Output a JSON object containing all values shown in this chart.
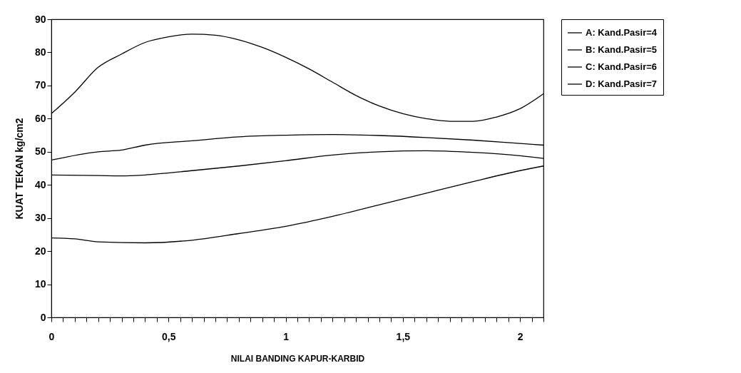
{
  "chart_data": {
    "type": "line",
    "xlabel": "NILAI BANDING KAPUR-KARBID",
    "ylabel": "KUAT TEKAN kg/cm2",
    "xlim": [
      0,
      2.1
    ],
    "ylim": [
      0,
      90
    ],
    "xticks": [
      0,
      {
        "value": 0.05,
        "label": null
      },
      {
        "value": 0.1,
        "label": null
      },
      {
        "value": 0.15,
        "label": null
      },
      {
        "value": 0.2,
        "label": null
      },
      {
        "value": 0.25,
        "label": null
      },
      {
        "value": 0.3,
        "label": null
      },
      {
        "value": 0.35,
        "label": null
      },
      {
        "value": 0.4,
        "label": null
      },
      {
        "value": 0.45,
        "label": null
      },
      {
        "value": 0.5,
        "label": "0,5"
      },
      {
        "value": 0.55,
        "label": null
      },
      {
        "value": 0.6,
        "label": null
      },
      {
        "value": 0.65,
        "label": null
      },
      {
        "value": 0.7,
        "label": null
      },
      {
        "value": 0.75,
        "label": null
      },
      {
        "value": 0.8,
        "label": null
      },
      {
        "value": 0.85,
        "label": null
      },
      {
        "value": 0.9,
        "label": null
      },
      {
        "value": 0.95,
        "label": null
      },
      1,
      {
        "value": 1.05,
        "label": null
      },
      {
        "value": 1.1,
        "label": null
      },
      {
        "value": 1.15,
        "label": null
      },
      {
        "value": 1.2,
        "label": null
      },
      {
        "value": 1.25,
        "label": null
      },
      {
        "value": 1.3,
        "label": null
      },
      {
        "value": 1.35,
        "label": null
      },
      {
        "value": 1.4,
        "label": null
      },
      {
        "value": 1.45,
        "label": null
      },
      {
        "value": 1.5,
        "label": "1,5"
      },
      {
        "value": 1.55,
        "label": null
      },
      {
        "value": 1.6,
        "label": null
      },
      {
        "value": 1.65,
        "label": null
      },
      {
        "value": 1.7,
        "label": null
      },
      {
        "value": 1.75,
        "label": null
      },
      {
        "value": 1.8,
        "label": null
      },
      {
        "value": 1.85,
        "label": null
      },
      {
        "value": 1.9,
        "label": null
      },
      {
        "value": 1.95,
        "label": null
      },
      2,
      {
        "value": 2.05,
        "label": null
      },
      {
        "value": 2.1,
        "label": null
      }
    ],
    "yticks": [
      0,
      10,
      20,
      30,
      40,
      50,
      60,
      70,
      80,
      90
    ],
    "grid": false,
    "legend": "right",
    "marker": "none",
    "line_style": "solid",
    "series": [
      {
        "name": "A: Kand.Pasir=4",
        "color": "#000000",
        "x": [
          0,
          0.1,
          0.2,
          0.3,
          0.4,
          0.5,
          0.6,
          0.7,
          0.8,
          0.9,
          1.0,
          1.1,
          1.2,
          1.3,
          1.4,
          1.5,
          1.6,
          1.7,
          1.8,
          1.9,
          2.0,
          2.1
        ],
        "values": [
          61.5,
          68,
          75.5,
          79.5,
          83,
          84.7,
          85.5,
          85.2,
          83.8,
          81.5,
          78.5,
          75,
          71,
          67,
          63.8,
          61.5,
          60,
          59.2,
          59.2,
          60.5,
          63,
          67.5
        ]
      },
      {
        "name": "B: Kand.Pasir=5",
        "color": "#000000",
        "x": [
          0,
          0.2,
          0.3,
          0.4,
          0.6,
          0.8,
          1.0,
          1.2,
          1.4,
          1.6,
          1.8,
          2.0,
          2.1
        ],
        "values": [
          47.5,
          50,
          50.5,
          52,
          53.3,
          54.5,
          55,
          55.2,
          54.9,
          54.3,
          53.5,
          52.5,
          52
        ]
      },
      {
        "name": "C: Kand.Pasir=6",
        "color": "#000000",
        "x": [
          0,
          0.2,
          0.3,
          0.4,
          0.6,
          0.8,
          1.0,
          1.2,
          1.4,
          1.6,
          1.8,
          2.0,
          2.1
        ],
        "values": [
          43,
          42.8,
          42.7,
          43,
          44.3,
          45.7,
          47.3,
          49,
          50,
          50.3,
          49.8,
          48.8,
          48
        ]
      },
      {
        "name": "D: Kand.Pasir=7",
        "color": "#000000",
        "x": [
          0,
          0.1,
          0.2,
          0.4,
          0.6,
          0.8,
          1.0,
          1.2,
          1.4,
          1.6,
          1.8,
          2.0,
          2.1
        ],
        "values": [
          24,
          23.7,
          22.8,
          22.5,
          23.3,
          25.3,
          27.5,
          30.5,
          34,
          37.5,
          41,
          44.3,
          45.7
        ]
      }
    ]
  }
}
